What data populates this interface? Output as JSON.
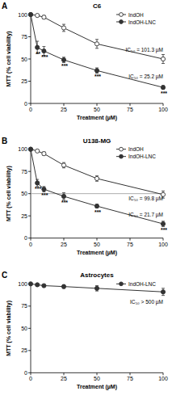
{
  "chart_data": [
    {
      "type": "line",
      "panel_label": "A",
      "title": "C6",
      "x_label": "Treatment (µM)",
      "y_label": "MTT (% cell viability)",
      "x": [
        0,
        5,
        10,
        25,
        50,
        100
      ],
      "xlim": [
        0,
        100
      ],
      "xticks": [
        0,
        25,
        50,
        75,
        100
      ],
      "ylim": [
        0,
        100
      ],
      "yticks": [
        0,
        25,
        50,
        75,
        100
      ],
      "legend": "upper right",
      "grid": false,
      "series": [
        {
          "name": "IndOH",
          "color": "#333333",
          "marker": "open_circle",
          "line_style": "solid",
          "values": [
            100,
            99,
            97,
            85,
            67,
            50
          ],
          "errors": [
            0,
            1,
            2,
            4,
            5,
            5
          ]
        },
        {
          "name": "IndOH-LNC",
          "color": "#333333",
          "marker": "filled_circle",
          "line_style": "solid",
          "values": [
            100,
            63,
            59,
            49,
            37,
            18
          ],
          "errors": [
            0,
            7,
            5,
            3,
            3,
            2
          ],
          "significance": [
            null,
            "**",
            "***",
            "***",
            "***",
            "***"
          ]
        }
      ],
      "annotations": [
        {
          "text": "IC₅₀ = 101.3 µM",
          "x": 100,
          "y": 58
        },
        {
          "text": "IC₅₀ = 25.2 µM",
          "x": 100,
          "y": 28
        }
      ]
    },
    {
      "type": "line",
      "panel_label": "B",
      "title": "U138-MG",
      "x_label": "Treatment (µM)",
      "y_label": "MTT (% cell viability)",
      "x": [
        0,
        5,
        10,
        25,
        50,
        100
      ],
      "xlim": [
        0,
        100
      ],
      "xticks": [
        0,
        25,
        50,
        75,
        100
      ],
      "ylim": [
        0,
        100
      ],
      "yticks": [
        0,
        25,
        50,
        75,
        100
      ],
      "legend": "upper right",
      "grid": false,
      "reference_line": 50,
      "series": [
        {
          "name": "IndOH",
          "color": "#333333",
          "marker": "open_circle",
          "line_style": "solid",
          "values": [
            100,
            98,
            95,
            82,
            67,
            49
          ],
          "errors": [
            0,
            1,
            2,
            3,
            3,
            4
          ]
        },
        {
          "name": "IndOH-LNC",
          "color": "#333333",
          "marker": "filled_circle",
          "line_style": "solid",
          "values": [
            100,
            62,
            55,
            47,
            36,
            16
          ],
          "errors": [
            0,
            4,
            3,
            4,
            2,
            3
          ],
          "significance": [
            null,
            "***",
            "***",
            "***",
            "***",
            "***"
          ]
        }
      ],
      "annotations": [
        {
          "text": "IC₅₀ = 99.8 µM",
          "x": 100,
          "y": 42
        },
        {
          "text": "IC₅₀ = 21.7 µM",
          "x": 100,
          "y": 24
        }
      ]
    },
    {
      "type": "line",
      "panel_label": "C",
      "title": "Astrocytes",
      "x_label": "Treatment (µM)",
      "y_label": "MTT (% cell viability)",
      "x": [
        0,
        5,
        10,
        25,
        50,
        100
      ],
      "xlim": [
        0,
        100
      ],
      "xticks": [
        0,
        25,
        50,
        75,
        100
      ],
      "ylim": [
        0,
        100
      ],
      "yticks": [
        0,
        25,
        50,
        75,
        100
      ],
      "legend": "upper right",
      "grid": false,
      "series": [
        {
          "name": "IndOH-LNC",
          "color": "#333333",
          "marker": "filled_circle",
          "line_style": "solid",
          "values": [
            100,
            99,
            98,
            97,
            95,
            91
          ],
          "errors": [
            0,
            1,
            1,
            2,
            3,
            4
          ]
        }
      ],
      "annotations": [
        {
          "text": "IC₅₀ > 500 µM",
          "x": 100,
          "y": 78
        }
      ]
    }
  ]
}
